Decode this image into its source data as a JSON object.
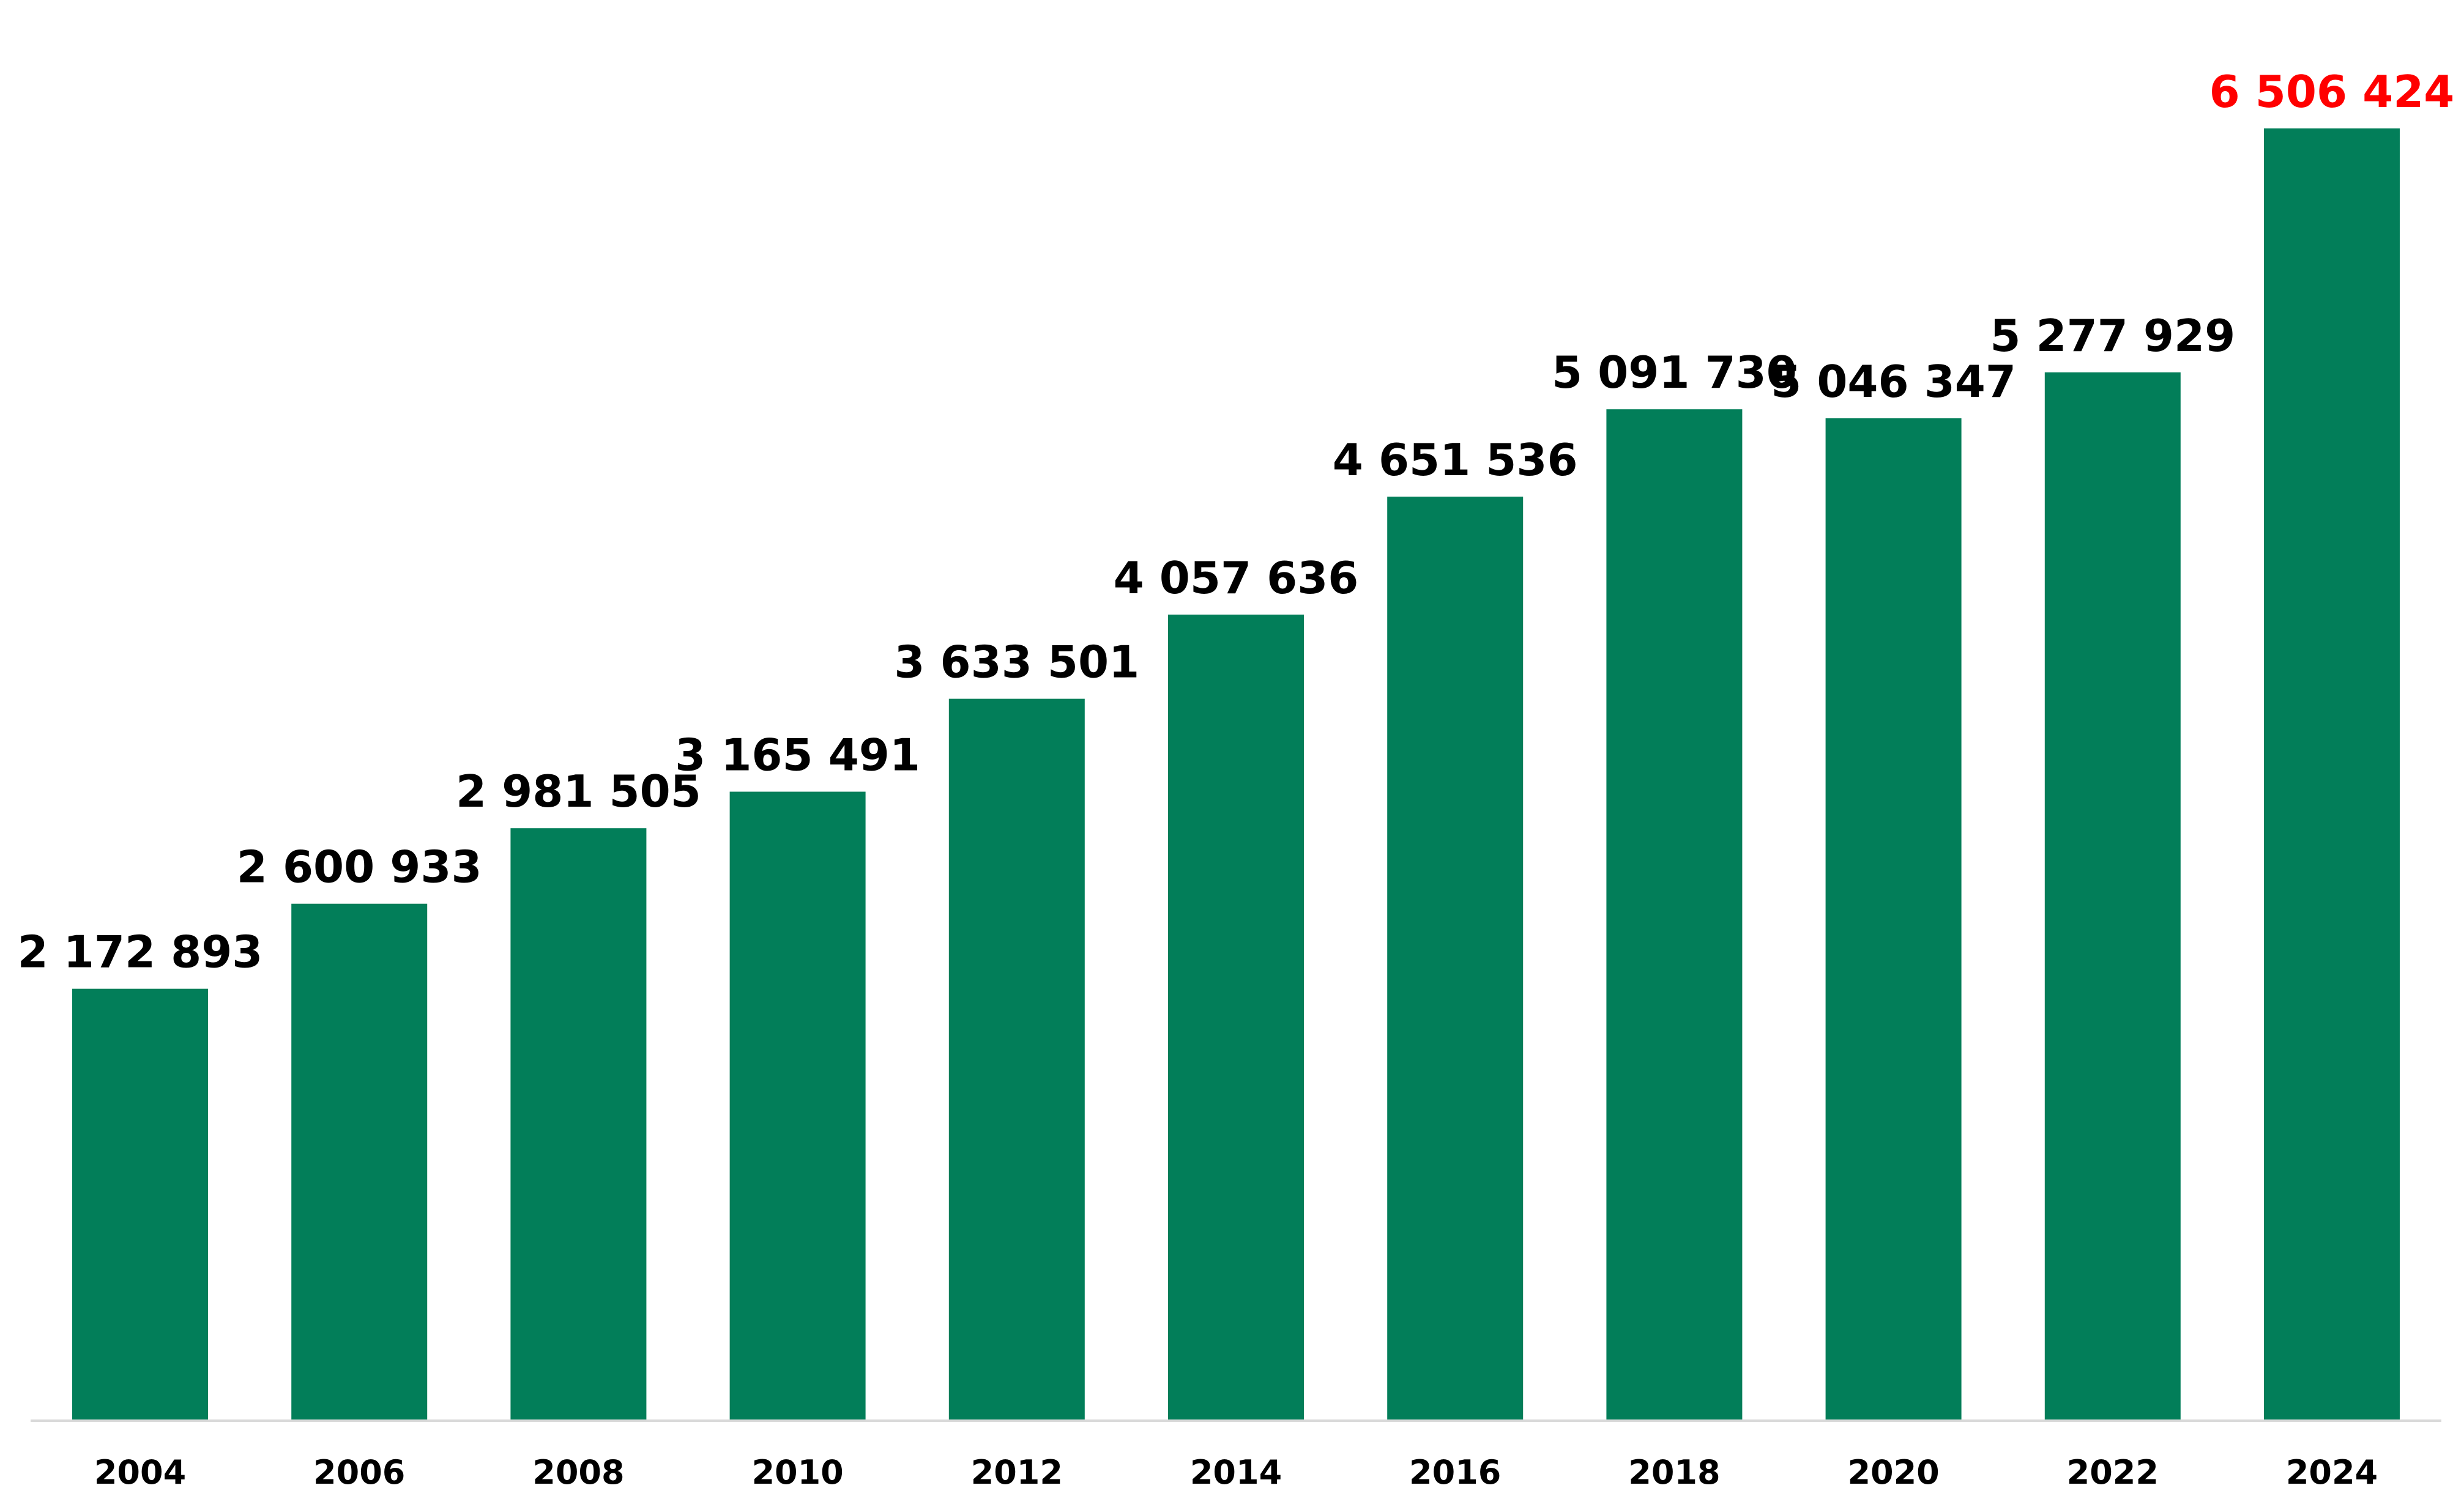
{
  "chart_data": {
    "type": "bar",
    "title": "",
    "xlabel": "",
    "ylabel": "",
    "categories": [
      "2004",
      "2006",
      "2008",
      "2010",
      "2012",
      "2014",
      "2016",
      "2018",
      "2020",
      "2022",
      "2024"
    ],
    "series": [
      {
        "values": [
          2172893,
          2600933,
          2981505,
          3165491,
          3633501,
          4057636,
          4651536,
          5091730,
          5046347,
          5277929,
          6506424
        ]
      }
    ],
    "data_labels": [
      "2 172 893",
      "2 600 933",
      "2 981 505",
      "3 165 491",
      "3 633 501",
      "4 057 636",
      "4 651 536",
      "5 091 730",
      "5 046 347",
      "5 277 929",
      "6 506 424"
    ],
    "ylim": [
      0,
      7000000
    ],
    "grid": false,
    "legend": "none",
    "colors": {
      "bar": "#027E59",
      "label": "#000000",
      "highlight_label": "#FF0000",
      "axis": "#D9D9D9"
    },
    "highlight_index": 10
  }
}
